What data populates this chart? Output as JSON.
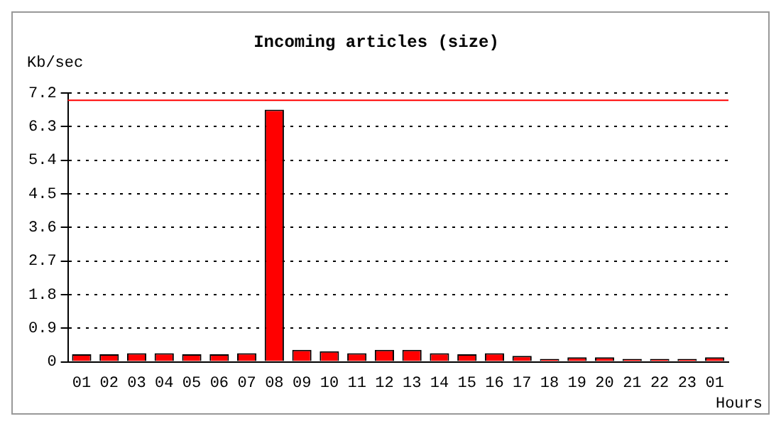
{
  "chart_data": {
    "type": "bar",
    "title": "Incoming articles (size)",
    "ylabel": "Kb/sec",
    "xlabel": "Hours",
    "categories": [
      "01",
      "02",
      "03",
      "04",
      "05",
      "06",
      "07",
      "08",
      "09",
      "10",
      "11",
      "12",
      "13",
      "14",
      "15",
      "16",
      "17",
      "18",
      "19",
      "20",
      "21",
      "22",
      "23",
      "01"
    ],
    "series": [
      {
        "color": "#ff0000",
        "values": [
          0.2,
          0.2,
          0.23,
          0.23,
          0.2,
          0.2,
          0.23,
          6.75,
          0.32,
          0.28,
          0.23,
          0.32,
          0.32,
          0.23,
          0.2,
          0.23,
          0.16,
          0.08,
          0.12,
          0.12,
          0.08,
          0.08,
          0.08,
          0.12
        ]
      }
    ],
    "ylim": [
      0,
      7.2
    ],
    "yticks": [
      0,
      0.9,
      1.8,
      2.7,
      3.6,
      4.5,
      5.4,
      6.3,
      7.2
    ],
    "ref_lines": [
      {
        "axis": "y",
        "value": 7.0,
        "color": "#ff0000"
      }
    ],
    "grid": "y",
    "line_style": "dotted",
    "legend": false
  }
}
